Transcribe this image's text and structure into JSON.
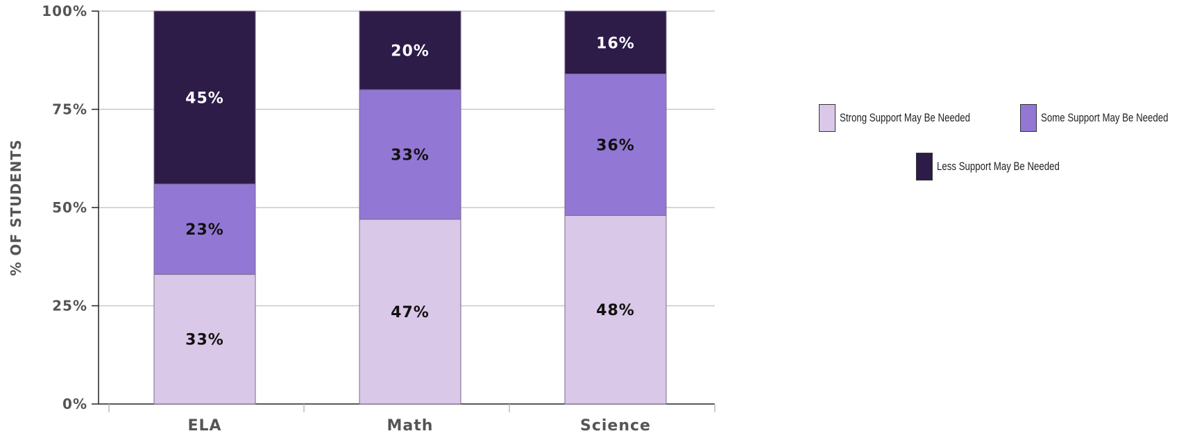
{
  "chart_data": {
    "type": "bar",
    "stacked": true,
    "categories": [
      "ELA",
      "Math",
      "Science"
    ],
    "ylabel": "% OF STUDENTS",
    "xlabel": "",
    "ylim": [
      0,
      100
    ],
    "yticks": [
      "0%",
      "25%",
      "50%",
      "75%",
      "100%"
    ],
    "ytick_values": [
      0,
      25,
      50,
      75,
      100
    ],
    "grid": true,
    "legend_position": "right",
    "series": [
      {
        "name": "Strong Support May Be Needed",
        "color": "#d9c8e8",
        "text_color": "#111111",
        "values": [
          33,
          47,
          48
        ],
        "labels": [
          "33%",
          "47%",
          "48%"
        ]
      },
      {
        "name": "Some Support May Be Needed",
        "color": "#9377d4",
        "text_color": "#111111",
        "values": [
          23,
          33,
          36
        ],
        "labels": [
          "23%",
          "33%",
          "36%"
        ]
      },
      {
        "name": "Less Support May Be Needed",
        "color": "#2d1b48",
        "text_color": "#ffffff",
        "values": [
          45,
          20,
          16
        ],
        "labels": [
          "45%",
          "20%",
          "16%"
        ]
      }
    ]
  }
}
